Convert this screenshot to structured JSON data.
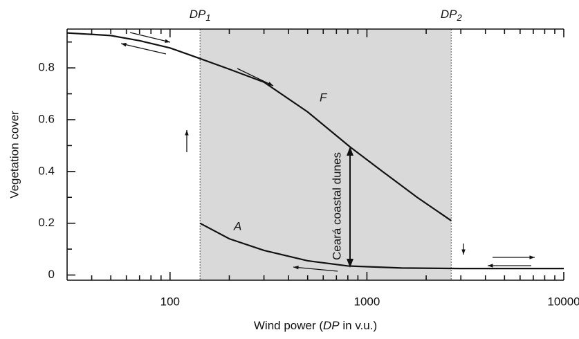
{
  "chart_data": {
    "type": "line",
    "x_label": [
      "Wind power (",
      "DP",
      " in v.u.)"
    ],
    "y_label": "Vegetation cover",
    "xscale": "log",
    "xlim": [
      30,
      10000
    ],
    "xticks": [
      100,
      1000,
      10000
    ],
    "xminorticks": [
      40,
      50,
      60,
      70,
      80,
      90,
      200,
      300,
      400,
      500,
      600,
      700,
      800,
      900,
      2000,
      3000,
      4000,
      5000,
      6000,
      7000,
      8000,
      9000
    ],
    "ylim": [
      -0.02,
      0.95
    ],
    "yticks": [
      0,
      0.2,
      0.4,
      0.6,
      0.8
    ],
    "yminorticks": [
      0.1,
      0.3,
      0.5,
      0.7,
      0.9
    ],
    "shaded_region": [
      142,
      2680
    ],
    "series": [
      {
        "name": "F",
        "color": "#111111",
        "x": [
          30,
          50,
          70,
          100,
          142,
          200,
          300,
          500,
          817,
          1200,
          1800,
          2680
        ],
        "values": [
          0.935,
          0.925,
          0.905,
          0.877,
          0.836,
          0.795,
          0.745,
          0.63,
          0.496,
          0.4,
          0.3,
          0.21
        ]
      },
      {
        "name": "A",
        "color": "#111111",
        "x": [
          142,
          200,
          300,
          500,
          800,
          1500,
          3000,
          10000
        ],
        "values": [
          0.2,
          0.14,
          0.095,
          0.055,
          0.035,
          0.027,
          0.025,
          0.025
        ]
      }
    ],
    "annotations": {
      "dp1": [
        "DP",
        "1"
      ],
      "dp2": [
        "DP",
        "2"
      ],
      "dunes": "Ceará coastal dunes"
    }
  }
}
